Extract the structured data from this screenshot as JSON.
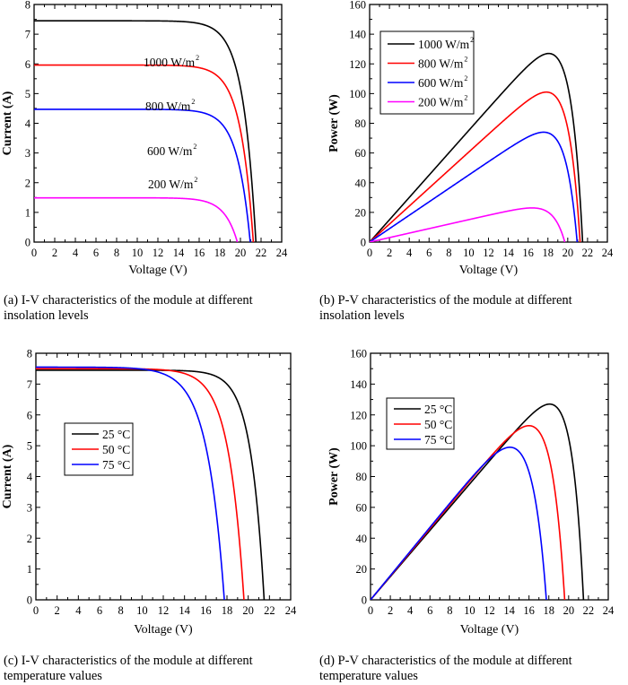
{
  "chart_data": [
    {
      "id": "a",
      "type": "line",
      "caption_line1": "(a) I-V characteristics of the  module at different",
      "caption_line2": "insolation levels",
      "xlabel": "Voltage (V)",
      "ylabel": "Current (A)",
      "xlim": [
        0,
        24
      ],
      "ylim": [
        0,
        8
      ],
      "xticks": [
        0,
        2,
        4,
        6,
        8,
        10,
        12,
        14,
        16,
        18,
        20,
        22,
        24
      ],
      "yticks": [
        0,
        1,
        2,
        3,
        4,
        5,
        6,
        7,
        8
      ],
      "curve_kind": "IV",
      "legend": "inline-labels",
      "series": [
        {
          "name": "1000 W/m²",
          "label": "1000 W/m",
          "sup": "2",
          "color": "#000000",
          "isc": 7.45,
          "voc": 21.5,
          "vt": 1.25
        },
        {
          "name": "800 W/m²",
          "label": "800 W/m",
          "sup": "2",
          "color": "#ff0000",
          "isc": 5.96,
          "voc": 21.25,
          "vt": 1.25
        },
        {
          "name": "600 W/m²",
          "label": "600 W/m",
          "sup": "2",
          "color": "#0000ff",
          "isc": 4.47,
          "voc": 20.95,
          "vt": 1.25
        },
        {
          "name": "200 W/m²",
          "label": "200 W/m",
          "sup": "2",
          "color": "#ff00ff",
          "isc": 1.49,
          "voc": 19.7,
          "vt": 1.25
        }
      ]
    },
    {
      "id": "b",
      "type": "line",
      "caption_line1": "(b) P-V characteristics of the module at different",
      "caption_line2": "insolation levels",
      "xlabel": "Voltage (V)",
      "ylabel": "Power (W)",
      "xlim": [
        0,
        24
      ],
      "ylim": [
        0,
        160
      ],
      "xticks": [
        0,
        2,
        4,
        6,
        8,
        10,
        12,
        14,
        16,
        18,
        20,
        22,
        24
      ],
      "yticks": [
        0,
        20,
        40,
        60,
        80,
        100,
        120,
        140,
        160
      ],
      "curve_kind": "PV",
      "legend": "top-left",
      "series": [
        {
          "name": "1000 W/m²",
          "label": "1000 W/m",
          "sup": "2",
          "color": "#000000",
          "isc": 7.45,
          "voc": 21.5,
          "vt": 1.25,
          "pmax": 127,
          "vmp": 18.1
        },
        {
          "name": "800 W/m²",
          "label": "800 W/m",
          "sup": "2",
          "color": "#ff0000",
          "isc": 5.96,
          "voc": 21.25,
          "vt": 1.25,
          "pmax": 101,
          "vmp": 18.0
        },
        {
          "name": "600 W/m²",
          "label": "600 W/m",
          "sup": "2",
          "color": "#0000ff",
          "isc": 4.47,
          "voc": 20.95,
          "vt": 1.25,
          "pmax": 74,
          "vmp": 17.6
        },
        {
          "name": "200 W/m²",
          "label": "200 W/m",
          "sup": "2",
          "color": "#ff00ff",
          "isc": 1.49,
          "voc": 19.7,
          "vt": 1.25,
          "pmax": 23,
          "vmp": 16.5
        }
      ]
    },
    {
      "id": "c",
      "type": "line",
      "caption_line1": "(c) I-V characteristics of the module at different",
      "caption_line2": "temperature values",
      "xlabel": "Voltage (V)",
      "ylabel": "Current (A)",
      "xlim": [
        0,
        24
      ],
      "ylim": [
        0,
        8
      ],
      "xticks": [
        0,
        2,
        4,
        6,
        8,
        10,
        12,
        14,
        16,
        18,
        20,
        22,
        24
      ],
      "yticks": [
        0,
        1,
        2,
        3,
        4,
        5,
        6,
        7,
        8
      ],
      "curve_kind": "IV",
      "legend": "center-left",
      "series": [
        {
          "name": "25 °C",
          "label": "25 °C",
          "color": "#000000",
          "isc": 7.45,
          "voc": 21.5,
          "vt": 1.25
        },
        {
          "name": "50 °C",
          "label": "50 °C",
          "color": "#ff0000",
          "isc": 7.5,
          "voc": 19.6,
          "vt": 1.45
        },
        {
          "name": "75 °C",
          "label": "75 °C",
          "color": "#0000ff",
          "isc": 7.55,
          "voc": 17.75,
          "vt": 1.62
        }
      ]
    },
    {
      "id": "d",
      "type": "line",
      "caption_line1": "(d) P-V characteristics of the module at different",
      "caption_line2": "temperature values",
      "xlabel": "Voltage (V)",
      "ylabel": "Power (W)",
      "xlim": [
        0,
        24
      ],
      "ylim": [
        0,
        160
      ],
      "xticks": [
        0,
        2,
        4,
        6,
        8,
        10,
        12,
        14,
        16,
        18,
        20,
        22,
        24
      ],
      "yticks": [
        0,
        20,
        40,
        60,
        80,
        100,
        120,
        140,
        160
      ],
      "curve_kind": "PV",
      "legend": "top-left",
      "series": [
        {
          "name": "25 °C",
          "label": "25 °C",
          "color": "#000000",
          "isc": 7.45,
          "voc": 21.5,
          "vt": 1.25,
          "pmax": 127,
          "vmp": 18.1
        },
        {
          "name": "50 °C",
          "label": "50 °C",
          "color": "#ff0000",
          "isc": 7.5,
          "voc": 19.6,
          "vt": 1.45,
          "pmax": 113,
          "vmp": 16.3
        },
        {
          "name": "75 °C",
          "label": "75 °C",
          "color": "#0000ff",
          "isc": 7.55,
          "voc": 17.75,
          "vt": 1.62,
          "pmax": 99,
          "vmp": 14.4
        }
      ]
    }
  ]
}
